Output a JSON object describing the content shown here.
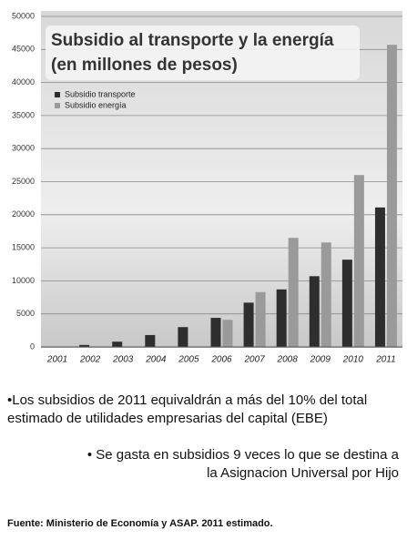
{
  "chart_data": {
    "type": "bar",
    "title": "Subsidio al transporte y la energía",
    "subtitle": "(en millones de pesos)",
    "categories": [
      "2001",
      "2002",
      "2003",
      "2004",
      "2005",
      "2006",
      "2007",
      "2008",
      "2009",
      "2010",
      "2011"
    ],
    "series": [
      {
        "name": "Subsidio transporte",
        "color": "#2e2e2e",
        "values": [
          null,
          300,
          800,
          1800,
          3000,
          4400,
          6700,
          8700,
          10700,
          13200,
          21100
        ]
      },
      {
        "name": "Subsidio energía",
        "color": "#9a9a9a",
        "values": [
          null,
          null,
          null,
          null,
          null,
          4100,
          8300,
          16500,
          15800,
          26000,
          45700
        ]
      }
    ],
    "ylim": [
      0,
      50000
    ],
    "yticks": [
      0,
      5000,
      10000,
      15000,
      20000,
      25000,
      30000,
      35000,
      40000,
      45000,
      50000
    ],
    "grid": true
  },
  "notes": [
    [
      "•Los subsidios de 2011 equivaldrán a más del 10% del total",
      "estimado de utilidades empresarias del capital (EBE)"
    ],
    [
      "• Se gasta en subsidios 9 veces lo que se destina a",
      "la Asignacion Universal por Hijo"
    ]
  ],
  "source": "Fuente: Ministerio de Economía y ASAP. 2011 estimado."
}
